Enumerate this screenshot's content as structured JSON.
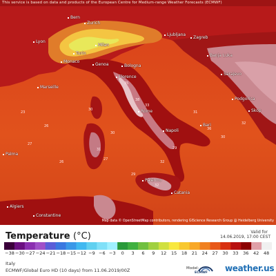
{
  "notice": "This service is based on data and products of the European Centre for Medium-range Weather Forecasts (ECMWF)",
  "attribution": "Map data © OpenStreetMap contributors, rendering GIScience Research Group @ Heidelberg University",
  "cities": [
    {
      "name": "Bern"
    },
    {
      "name": "Zurich"
    },
    {
      "name": "Ljubljana"
    },
    {
      "name": "Zagreb"
    },
    {
      "name": "Milan"
    },
    {
      "name": "Lyon"
    },
    {
      "name": "Turin"
    },
    {
      "name": "Monaco"
    },
    {
      "name": "Genoa"
    },
    {
      "name": "Bologna"
    },
    {
      "name": "Banja Luka"
    },
    {
      "name": "Marseille"
    },
    {
      "name": "Florence"
    },
    {
      "name": "Sarajevo"
    },
    {
      "name": "Rome"
    },
    {
      "name": "Podgorica"
    },
    {
      "name": "Skop"
    },
    {
      "name": "Napoli"
    },
    {
      "name": "Bari"
    },
    {
      "name": "Palma"
    },
    {
      "name": "Palermo"
    },
    {
      "name": "Catania"
    },
    {
      "name": "Algiers"
    },
    {
      "name": "Constantine"
    }
  ],
  "map_values": [
    "23",
    "26",
    "26",
    "30",
    "27",
    "33",
    "29",
    "35",
    "38",
    "30",
    "32",
    "36",
    "30",
    "31",
    "32",
    "29",
    "32",
    "31",
    "27"
  ],
  "legend": {
    "title": "Temperature",
    "unit": "(°C)",
    "valid_label": "Valid for",
    "valid_time": "14.06.2019, 17:00 CEST",
    "ticks": [
      "−38",
      "−30",
      "−27",
      "−24",
      "−21",
      "−18",
      "−15",
      "−12",
      "−9",
      "−6",
      "−3",
      "0",
      "3",
      "6",
      "9",
      "12",
      "15",
      "18",
      "21",
      "24",
      "27",
      "30",
      "33",
      "36",
      "42",
      "48"
    ],
    "colors": [
      "#3a003a",
      "#6a0f80",
      "#8a2fb0",
      "#a050c8",
      "#5a5ed8",
      "#3a78e0",
      "#3a98e8",
      "#40b8f0",
      "#60d0f0",
      "#80e0f8",
      "#a0f0ff",
      "#2a9a3a",
      "#40b040",
      "#70c040",
      "#a0d040",
      "#d0e040",
      "#f8e840",
      "#f8c830",
      "#f8a828",
      "#f08020",
      "#e85818",
      "#d83010",
      "#b81010",
      "#8c0000",
      "#e0a0a8",
      "#f0f0f0"
    ],
    "region": "Italy",
    "model_line": "ECMWF/Global Euro HD (10 days) from 11.06.2019/00Z",
    "model_label": "Model:",
    "ecmwf": "ECMWF",
    "brand": "weather.us"
  }
}
